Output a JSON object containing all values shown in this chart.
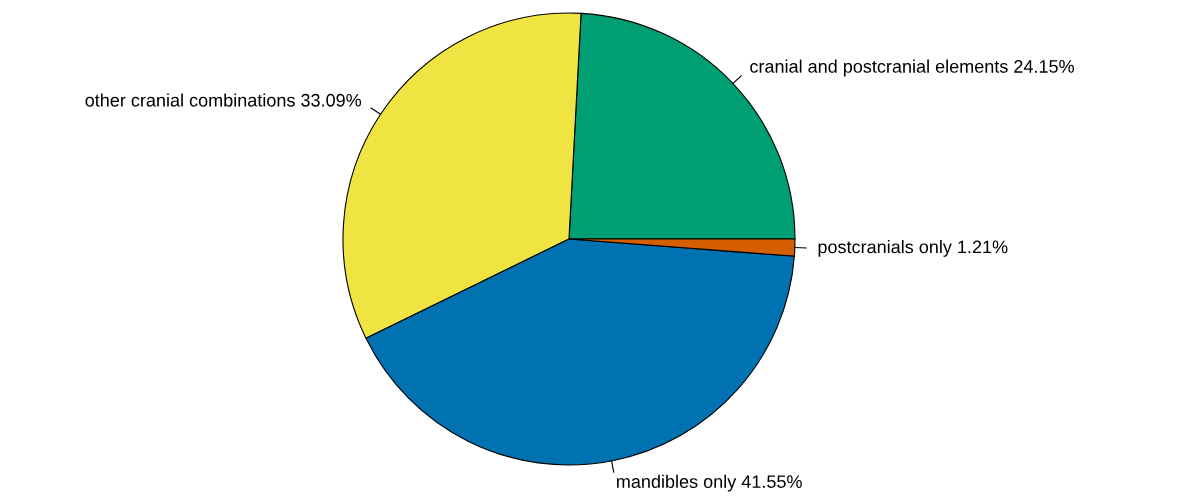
{
  "chart_data": {
    "type": "pie",
    "categories": [
      "cranial and postcranial elements",
      "other cranial combinations",
      "mandibles only",
      "postcranials only"
    ],
    "values": [
      24.15,
      33.09,
      41.55,
      1.21
    ],
    "value_labels": [
      "24.15%",
      "33.09%",
      "41.55%",
      "1.21%"
    ],
    "colors": [
      "#009e73",
      "#f0e442",
      "#0072b2",
      "#d55e00"
    ],
    "legend": false
  }
}
